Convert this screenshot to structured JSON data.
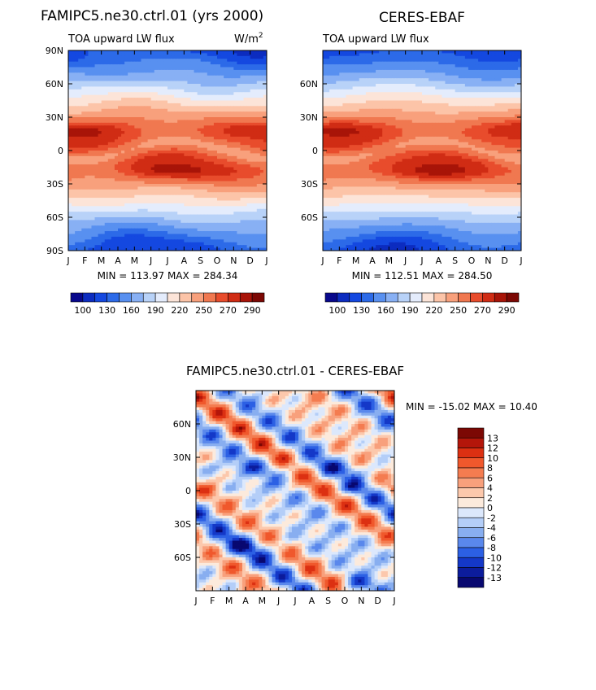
{
  "chart_data": [
    {
      "type": "heatmap",
      "title": "FAMIPC5.ne30.ctrl.01 (yrs 2000)",
      "subtitle": "TOA upward LW flux",
      "units": "W/m",
      "units_sup": "2",
      "x_tick_labels": [
        "J",
        "F",
        "M",
        "A",
        "M",
        "J",
        "J",
        "A",
        "S",
        "O",
        "N",
        "D",
        "J"
      ],
      "y_tick_labels": [
        "90N",
        "60N",
        "30N",
        "0",
        "30S",
        "60S",
        "90S"
      ],
      "y_ticks": [
        90,
        60,
        30,
        0,
        -30,
        -60,
        -90
      ],
      "ylim": [
        -90,
        90
      ],
      "stats": "MIN = 113.97 MAX = 284.34",
      "min": 113.97,
      "max": 284.34,
      "colorbar_labels": [
        "100",
        "130",
        "160",
        "190",
        "220",
        "250",
        "270",
        "290"
      ]
    },
    {
      "type": "heatmap",
      "title": "CERES-EBAF",
      "subtitle": "TOA upward LW flux",
      "x_tick_labels": [
        "J",
        "F",
        "M",
        "A",
        "M",
        "J",
        "J",
        "A",
        "S",
        "O",
        "N",
        "D",
        "J"
      ],
      "y_tick_labels": [
        "60N",
        "30N",
        "0",
        "30S",
        "60S"
      ],
      "y_ticks": [
        60,
        30,
        0,
        -30,
        -60
      ],
      "ylim": [
        -90,
        90
      ],
      "stats": "MIN = 112.51 MAX = 284.50",
      "min": 112.51,
      "max": 284.5,
      "colorbar_labels": [
        "100",
        "130",
        "160",
        "190",
        "220",
        "250",
        "270",
        "290"
      ]
    },
    {
      "type": "heatmap",
      "title": "FAMIPC5.ne30.ctrl.01 - CERES-EBAF",
      "x_tick_labels": [
        "J",
        "F",
        "M",
        "A",
        "M",
        "J",
        "J",
        "A",
        "S",
        "O",
        "N",
        "D",
        "J"
      ],
      "y_tick_labels": [
        "60N",
        "30N",
        "0",
        "30S",
        "60S"
      ],
      "y_ticks": [
        60,
        30,
        0,
        -30,
        -60
      ],
      "ylim": [
        -90,
        90
      ],
      "stats": "MIN = -15.02 MAX =  10.40",
      "min": -15.02,
      "max": 10.4,
      "colorbar_labels": [
        "13",
        "12",
        "10",
        "8",
        "6",
        "4",
        "2",
        "0",
        "-2",
        "-4",
        "-6",
        "-8",
        "-10",
        "-12",
        "-13"
      ]
    }
  ],
  "colors": {
    "mean_palette": [
      "#08088c",
      "#0c2cc0",
      "#1448e0",
      "#2c6ae8",
      "#5890f0",
      "#88b0f4",
      "#b8d2f8",
      "#e4ecfc",
      "#fce4d8",
      "#fcc4a8",
      "#f8a07c",
      "#f07850",
      "#e84c2c",
      "#d02c14",
      "#a81408",
      "#7c0804"
    ],
    "diff_palette": [
      "#7c0804",
      "#b4160a",
      "#dc3012",
      "#f0582c",
      "#f47c50",
      "#f8a07c",
      "#fcc8ac",
      "#fceadc",
      "#dce8fc",
      "#b4cef8",
      "#88aef0",
      "#5a88ec",
      "#2c60e4",
      "#1438c8",
      "#0c1c9c",
      "#080870"
    ]
  }
}
